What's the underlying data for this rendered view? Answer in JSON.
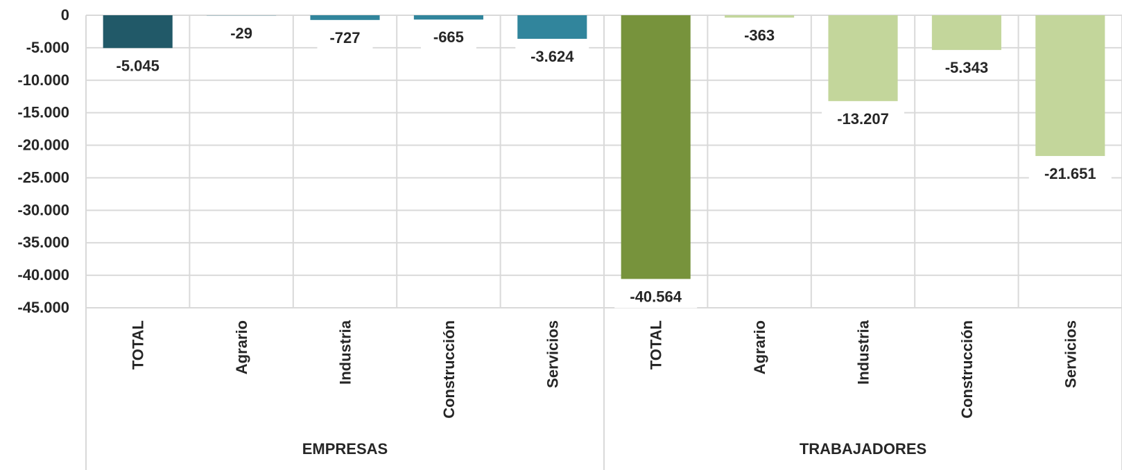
{
  "chart_data": {
    "type": "bar",
    "ylim": [
      -45000,
      0
    ],
    "y_ticks": [
      0,
      -5000,
      -10000,
      -15000,
      -20000,
      -25000,
      -30000,
      -35000,
      -40000,
      -45000
    ],
    "y_tick_labels": [
      "0",
      "-5.000",
      "-10.000",
      "-15.000",
      "-20.000",
      "-25.000",
      "-30.000",
      "-35.000",
      "-40.000",
      "-45.000"
    ],
    "grid": true,
    "legend": "none",
    "groups": [
      {
        "name": "EMPRESAS",
        "categories": [
          "TOTAL",
          "Agrario",
          "Industria",
          "Construcción",
          "Servicios"
        ],
        "values": [
          -5045,
          -29,
          -727,
          -665,
          -3624
        ],
        "labels": [
          "-5.045",
          "-29",
          "-727",
          "-665",
          "-3.624"
        ],
        "colors": [
          "#215968",
          "#31859C",
          "#31859C",
          "#31859C",
          "#31859C"
        ]
      },
      {
        "name": "TRABAJADORES",
        "categories": [
          "TOTAL",
          "Agrario",
          "Industria",
          "Construcción",
          "Servicios"
        ],
        "values": [
          -40564,
          -363,
          -13207,
          -5343,
          -21651
        ],
        "labels": [
          "-40.564",
          "-363",
          "-13.207",
          "-5.343",
          "-21.651"
        ],
        "colors": [
          "#77933C",
          "#C3D69B",
          "#C3D69B",
          "#C3D69B",
          "#C3D69B"
        ]
      }
    ]
  }
}
